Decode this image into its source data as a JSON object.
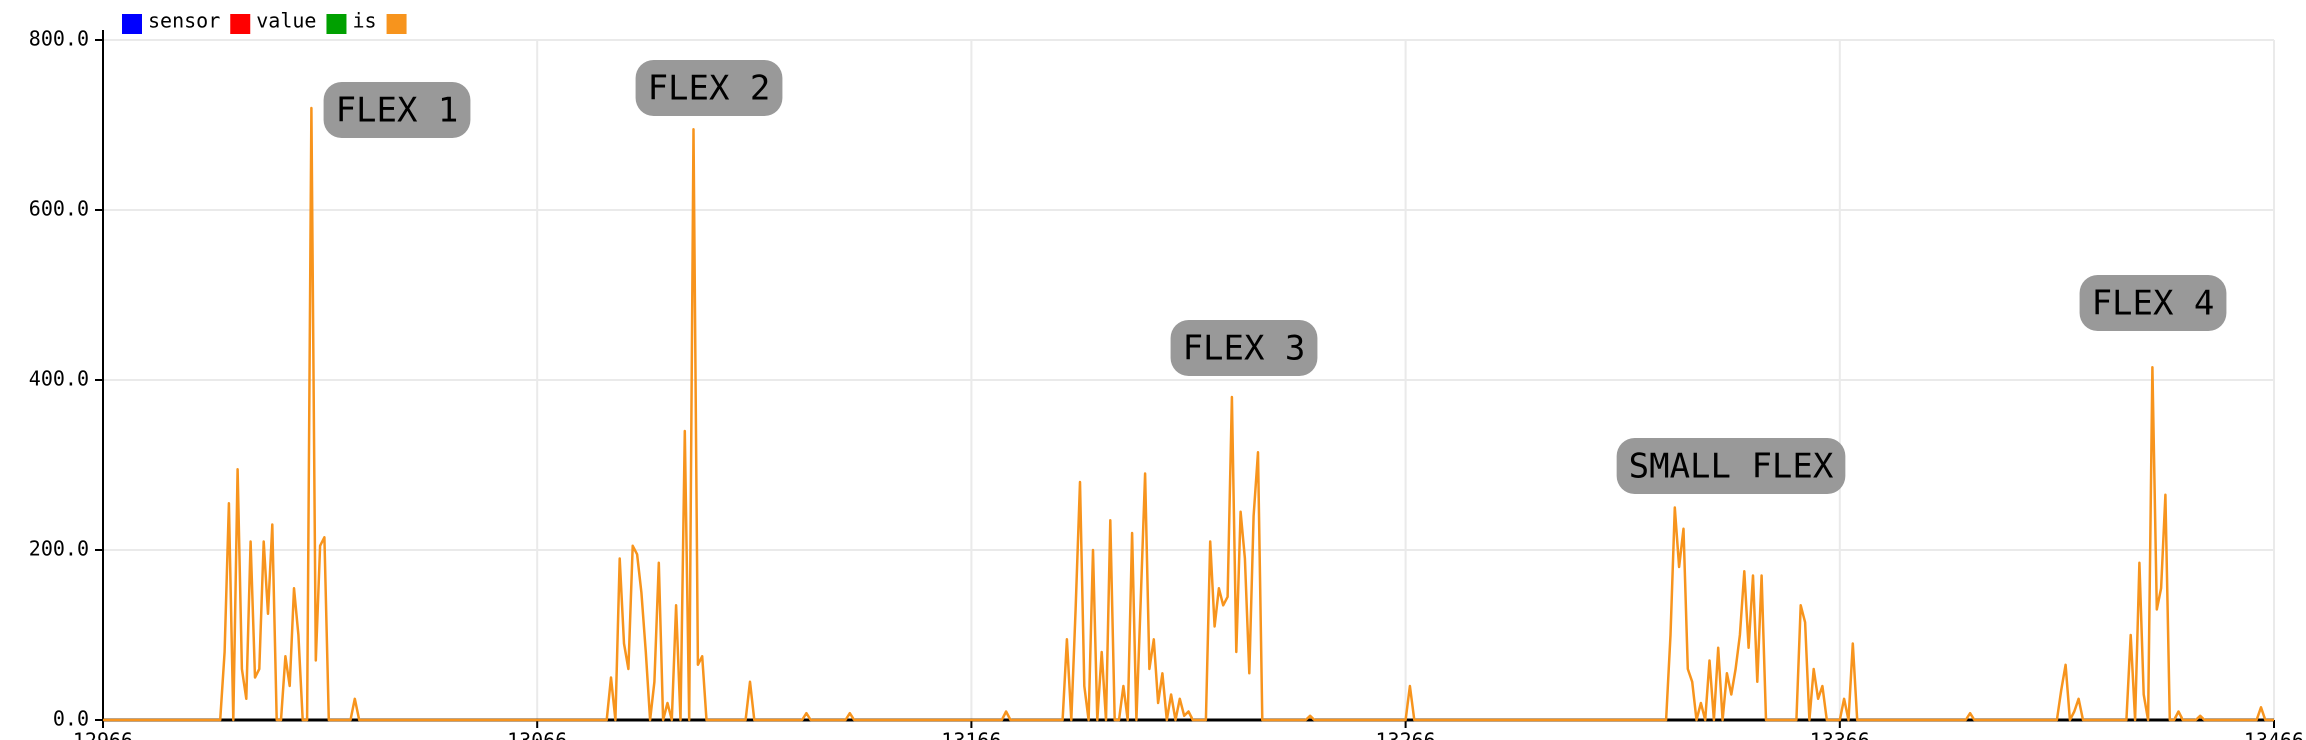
{
  "chart_data": {
    "type": "line",
    "series": [
      {
        "name": "sensor",
        "color": "#0000ff"
      },
      {
        "name": "value",
        "color": "#ff0000"
      },
      {
        "name": "is",
        "color": "#00a000"
      },
      {
        "color": "#f7941d",
        "x": [
          12966,
          12993,
          12994,
          12995,
          12996,
          12997,
          12998,
          12999,
          13000,
          13001,
          13002,
          13003,
          13004,
          13005,
          13006,
          13007,
          13008,
          13009,
          13010,
          13011,
          13012,
          13013,
          13014,
          13015,
          13016,
          13017,
          13018,
          13023,
          13024,
          13025,
          13082,
          13083,
          13084,
          13085,
          13086,
          13087,
          13088,
          13089,
          13090,
          13091,
          13092,
          13093,
          13094,
          13095,
          13096,
          13097,
          13098,
          13099,
          13100,
          13101,
          13102,
          13103,
          13104,
          13105,
          13114,
          13115,
          13116,
          13127,
          13128,
          13129,
          13137,
          13138,
          13139,
          13173,
          13174,
          13175,
          13187,
          13188,
          13189,
          13190,
          13191,
          13192,
          13193,
          13194,
          13195,
          13196,
          13197,
          13198,
          13199,
          13200,
          13201,
          13202,
          13203,
          13204,
          13205,
          13206,
          13207,
          13208,
          13209,
          13210,
          13211,
          13212,
          13213,
          13214,
          13215,
          13216,
          13217,
          13220,
          13221,
          13222,
          13223,
          13224,
          13225,
          13226,
          13227,
          13228,
          13229,
          13230,
          13231,
          13232,
          13233,
          13243,
          13244,
          13245,
          13266,
          13267,
          13268,
          13326,
          13327,
          13328,
          13329,
          13330,
          13331,
          13332,
          13333,
          13334,
          13335,
          13336,
          13337,
          13338,
          13339,
          13340,
          13341,
          13342,
          13343,
          13344,
          13345,
          13346,
          13347,
          13348,
          13349,
          13356,
          13357,
          13358,
          13359,
          13360,
          13361,
          13362,
          13363,
          13366,
          13367,
          13368,
          13369,
          13370,
          13395,
          13396,
          13397,
          13416,
          13417,
          13418,
          13419,
          13420,
          13421,
          13422,
          13432,
          13433,
          13434,
          13435,
          13436,
          13437,
          13438,
          13439,
          13440,
          13441,
          13442,
          13443,
          13444,
          13445,
          13448,
          13449,
          13450,
          13462,
          13463,
          13464,
          13466
        ],
        "values": [
          0,
          0,
          80,
          255,
          0,
          295,
          60,
          25,
          210,
          50,
          60,
          210,
          125,
          230,
          0,
          0,
          75,
          40,
          155,
          100,
          0,
          0,
          720,
          70,
          205,
          215,
          0,
          0,
          25,
          0,
          0,
          50,
          0,
          190,
          90,
          60,
          205,
          195,
          150,
          80,
          0,
          45,
          185,
          0,
          20,
          0,
          135,
          0,
          340,
          0,
          695,
          65,
          75,
          0,
          0,
          45,
          0,
          0,
          8,
          0,
          0,
          8,
          0,
          0,
          10,
          0,
          0,
          95,
          0,
          130,
          280,
          40,
          0,
          200,
          0,
          80,
          0,
          235,
          0,
          0,
          40,
          0,
          220,
          0,
          140,
          290,
          60,
          95,
          20,
          55,
          0,
          30,
          0,
          25,
          5,
          10,
          0,
          0,
          210,
          110,
          155,
          135,
          145,
          380,
          80,
          245,
          190,
          55,
          240,
          315,
          0,
          0,
          5,
          0,
          0,
          40,
          0,
          0,
          100,
          250,
          180,
          225,
          60,
          45,
          0,
          20,
          0,
          70,
          0,
          85,
          0,
          55,
          30,
          60,
          100,
          175,
          85,
          170,
          45,
          170,
          0,
          0,
          135,
          115,
          0,
          60,
          25,
          40,
          0,
          0,
          25,
          0,
          90,
          0,
          0,
          8,
          0,
          0,
          35,
          65,
          0,
          10,
          25,
          0,
          0,
          100,
          0,
          185,
          30,
          0,
          415,
          130,
          155,
          265,
          0,
          0,
          10,
          0,
          0,
          5,
          0,
          0,
          15,
          0,
          0
        ]
      }
    ],
    "xlim": [
      12966,
      13466
    ],
    "xticks": [
      12966,
      13066,
      13166,
      13266,
      13366,
      13466
    ],
    "ylim": [
      0,
      800
    ],
    "yticks": [
      {
        "value": 0,
        "label": "0.0"
      },
      {
        "value": 200,
        "label": "200.0"
      },
      {
        "value": 400,
        "label": "400.0"
      },
      {
        "value": 600,
        "label": "600.0"
      },
      {
        "value": 800,
        "label": "800.0"
      }
    ],
    "grid": true,
    "annotations": [
      "FLEX 1",
      "FLEX 2",
      "FLEX 3",
      "SMALL FLEX",
      "FLEX 4"
    ]
  }
}
